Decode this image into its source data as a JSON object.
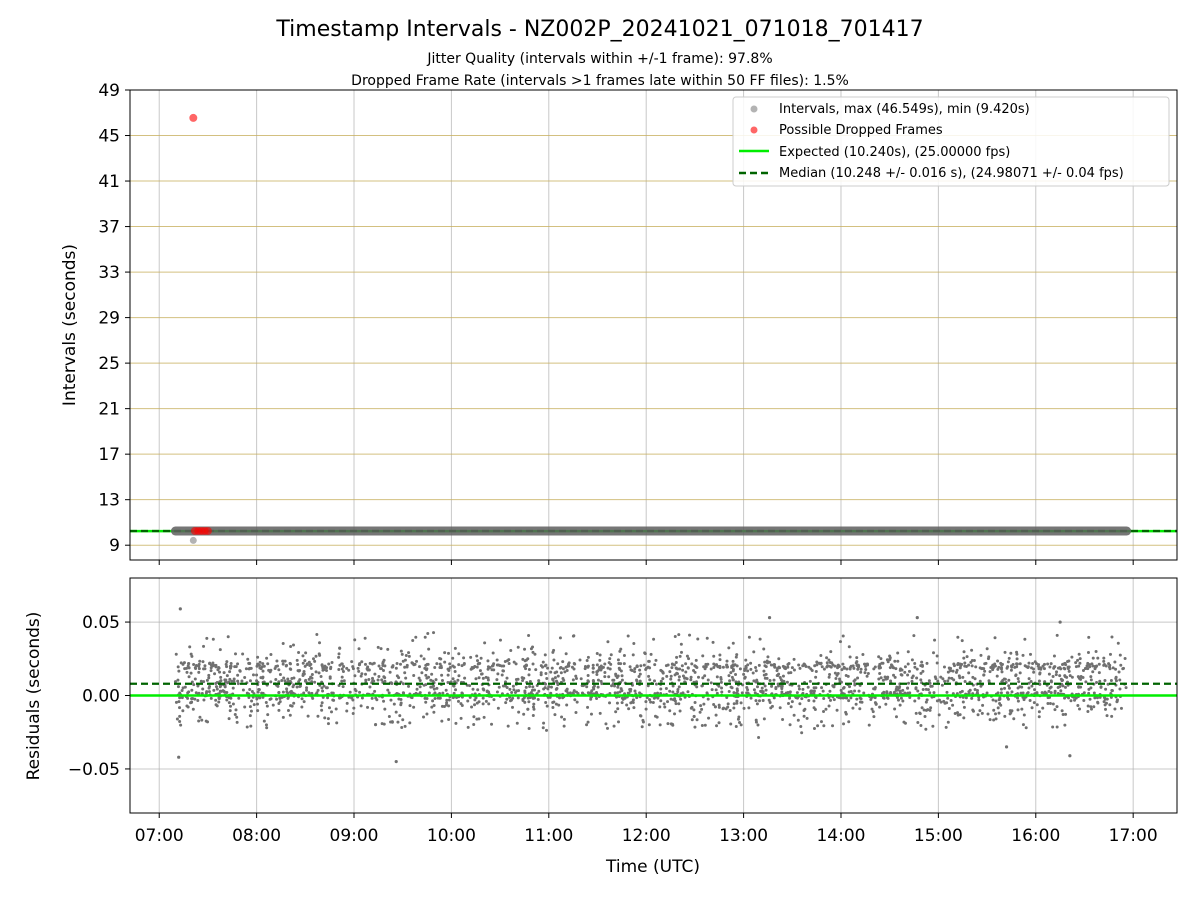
{
  "chart_data": [
    {
      "type": "scatter",
      "title": "Timestamp Intervals - NZ002P_20241021_071018_701417",
      "subtitle_lines": [
        "Jitter Quality (intervals within +/-1 frame): 97.8%",
        "Dropped Frame Rate (intervals >1 frames late within 50 FF files): 1.5%"
      ],
      "xlabel": "",
      "ylabel": "Intervals (seconds)",
      "xlim": [
        "06:42",
        "17:27"
      ],
      "ylim": [
        7.7,
        49
      ],
      "yticks": [
        9,
        13,
        17,
        21,
        25,
        29,
        33,
        37,
        41,
        45,
        49
      ],
      "grid": true,
      "legend_position": "top-right",
      "series": [
        {
          "name": "Intervals, max (46.549s), min (9.420s)",
          "color": "#808080",
          "x_range": [
            "07:10",
            "16:56"
          ],
          "y_typical": 10.248,
          "extra_points": [
            {
              "x": "07:21",
              "y": 9.42
            }
          ]
        },
        {
          "name": "Possible Dropped Frames",
          "color": "#ff0000",
          "points": [
            {
              "x": "07:21",
              "y": 46.549
            },
            {
              "x": "07:22",
              "y": 10.25
            },
            {
              "x": "07:24",
              "y": 10.25
            },
            {
              "x": "07:26",
              "y": 10.25
            },
            {
              "x": "07:28",
              "y": 10.25
            },
            {
              "x": "07:30",
              "y": 10.25
            }
          ]
        },
        {
          "name": "Expected (10.240s), (25.00000 fps)",
          "type": "hline",
          "y": 10.24,
          "color": "#00ee00",
          "style": "solid"
        },
        {
          "name": "Median (10.248 +/- 0.016 s), (24.98071 +/- 0.04 fps)",
          "type": "hline",
          "y": 10.248,
          "color": "#006400",
          "style": "dashed"
        }
      ]
    },
    {
      "type": "scatter",
      "xlabel": "Time (UTC)",
      "ylabel": "Residuals (seconds)",
      "xlim": [
        "06:42",
        "17:27"
      ],
      "ylim": [
        -0.08,
        0.08
      ],
      "yticks": [
        0.05,
        0.0,
        -0.05
      ],
      "ytick_labels": [
        "0.05",
        "0.00",
        "−0.05"
      ],
      "xticks": [
        "07:00",
        "08:00",
        "09:00",
        "10:00",
        "11:00",
        "12:00",
        "13:00",
        "14:00",
        "15:00",
        "16:00",
        "17:00"
      ],
      "grid": true,
      "series": [
        {
          "name": "",
          "color": "#707070",
          "x_range": [
            "07:10",
            "16:56"
          ],
          "y_range": [
            -0.045,
            0.059
          ],
          "y_center": 0.008,
          "y_spread": 0.016,
          "outliers": [
            {
              "x": "07:13",
              "y": 0.059
            },
            {
              "x": "07:12",
              "y": -0.042
            },
            {
              "x": "09:26",
              "y": -0.045
            },
            {
              "x": "13:16",
              "y": 0.053
            },
            {
              "x": "14:47",
              "y": 0.053
            },
            {
              "x": "16:15",
              "y": 0.05
            },
            {
              "x": "16:21",
              "y": -0.041
            },
            {
              "x": "15:42",
              "y": -0.035
            }
          ]
        },
        {
          "name": "",
          "type": "hline",
          "y": 0.0,
          "color": "#00ee00",
          "style": "solid"
        },
        {
          "name": "",
          "type": "hline",
          "y": 0.008,
          "color": "#006400",
          "style": "dashed"
        }
      ]
    }
  ]
}
